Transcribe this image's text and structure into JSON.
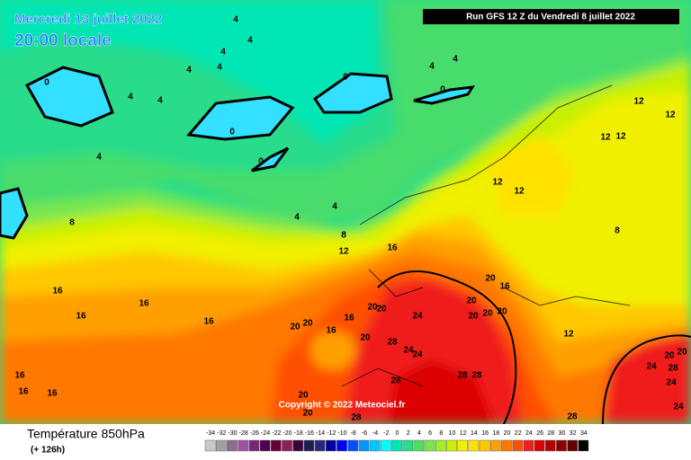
{
  "header": {
    "date": "Mercredi 13 juillet 2022",
    "time": "20:00 locale",
    "run": "Run GFS 12 Z du Vendredi 8 juillet 2022"
  },
  "copyright": "Copyright © 2022 Meteociel.fr",
  "footer": {
    "title": "Température 850hPa",
    "lead": "(+ 126h)"
  },
  "legend": {
    "values": [
      -34,
      -32,
      -30,
      -28,
      -26,
      -24,
      -22,
      -20,
      -18,
      -16,
      -14,
      -12,
      -10,
      -8,
      -6,
      -4,
      -2,
      0,
      2,
      4,
      6,
      8,
      10,
      12,
      14,
      16,
      18,
      20,
      22,
      24,
      26,
      28,
      30,
      32,
      34
    ],
    "colors": [
      "#c8c8c8",
      "#a0a0a0",
      "#8c6e8c",
      "#a050a0",
      "#782878",
      "#500050",
      "#640032",
      "#8c1e5a",
      "#3c003c",
      "#1e1e50",
      "#28287a",
      "#0000a0",
      "#0000ff",
      "#0050ff",
      "#0096ff",
      "#00c8ff",
      "#00ffff",
      "#00e6b4",
      "#28dc8c",
      "#50dc64",
      "#78e650",
      "#a0f028",
      "#c8f000",
      "#f0f000",
      "#ffe100",
      "#ffc800",
      "#ffa000",
      "#ff7800",
      "#ff5000",
      "#f01e1e",
      "#dc0000",
      "#b40000",
      "#8c0000",
      "#640000",
      "#000000"
    ]
  },
  "map": {
    "contour_labels": [
      4,
      4,
      4,
      4,
      4,
      4,
      4,
      0,
      4,
      0,
      0,
      0,
      4,
      4,
      0,
      4,
      4,
      8,
      8,
      12,
      16,
      12,
      12,
      12,
      12,
      12,
      12,
      8,
      16,
      16,
      16,
      16,
      20,
      20,
      16,
      16,
      20,
      20,
      20,
      24,
      28,
      24,
      24,
      20,
      16,
      20,
      20,
      20,
      20,
      12,
      28,
      28,
      28,
      20,
      20,
      28,
      16,
      16,
      16,
      24,
      20,
      20,
      28,
      24,
      28,
      24
    ]
  }
}
